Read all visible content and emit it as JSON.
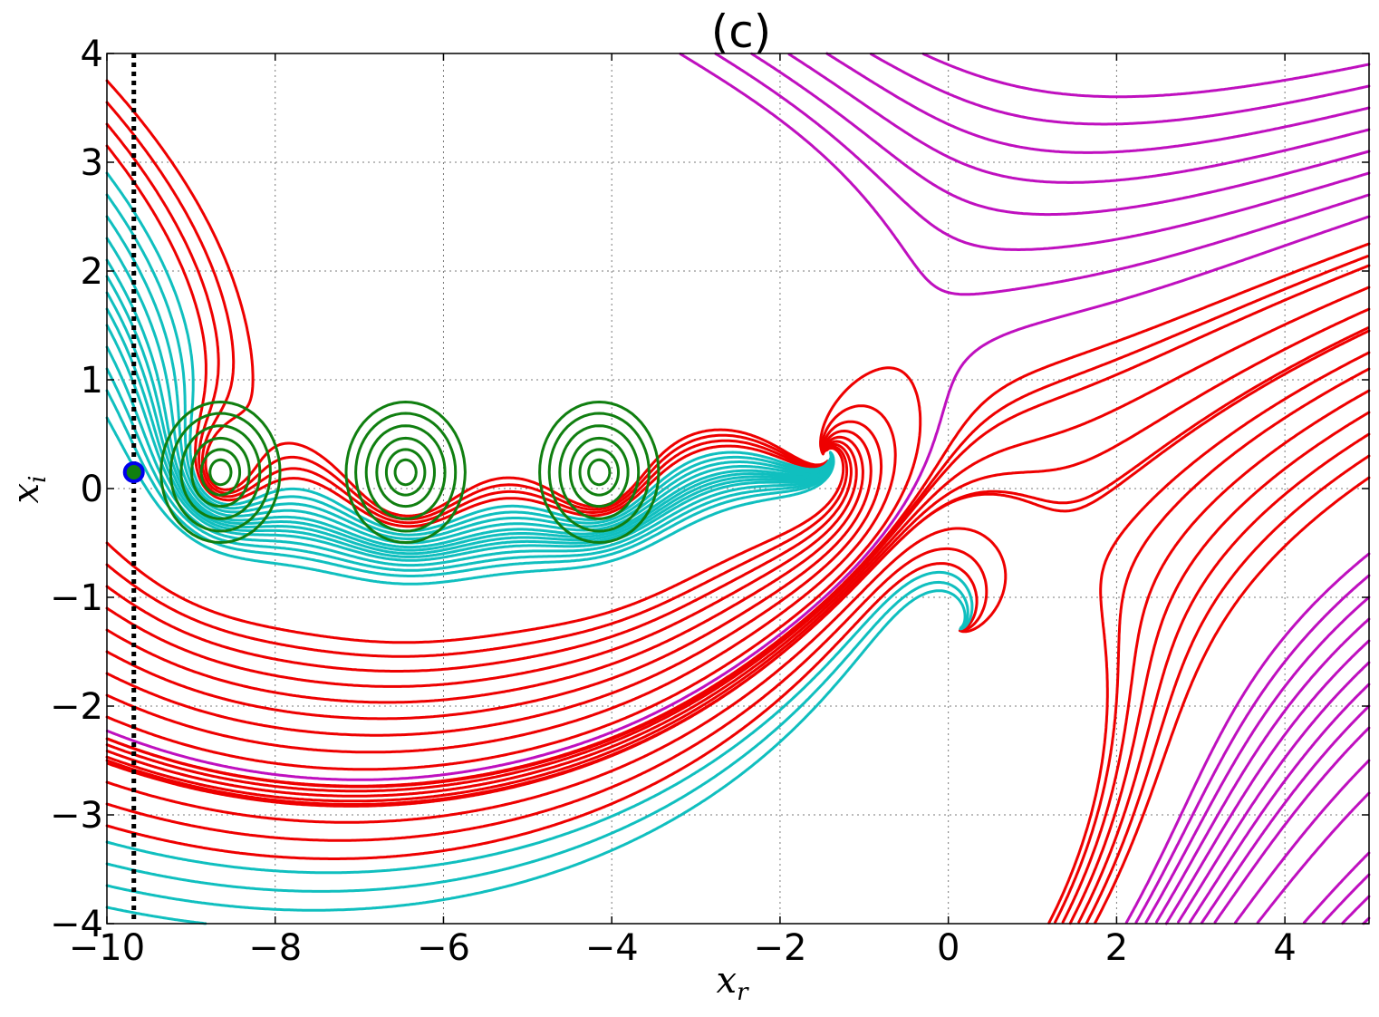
{
  "chart_data": {
    "type": "line",
    "title": "(c)",
    "xlabel": "x",
    "xlabel_sub": "r",
    "ylabel": "x",
    "ylabel_sub": "i",
    "xlim": [
      -10,
      5
    ],
    "ylim": [
      -4,
      4
    ],
    "grid": true,
    "xticks": [
      -10,
      -8,
      -6,
      -4,
      -2,
      0,
      2,
      4
    ],
    "yticks": [
      -4,
      -3,
      -2,
      -1,
      0,
      1,
      2,
      3,
      4
    ],
    "xtick_labels": [
      "−10",
      "−8",
      "−6",
      "−4",
      "−2",
      "0",
      "2",
      "4"
    ],
    "ytick_labels": [
      "−4",
      "−3",
      "−2",
      "−1",
      "0",
      "1",
      "2",
      "3",
      "4"
    ],
    "colors": {
      "red": "#ee0000",
      "cyan": "#10bfbf",
      "magenta": "#bf10bf",
      "green": "#107f10",
      "blue": "#0000ee",
      "black": "#000000"
    },
    "critical_points": [
      {
        "x": -1.45,
        "y": 0.3,
        "kind": "spiral",
        "color": "cyan"
      },
      {
        "x": 0.1,
        "y": -1.28,
        "kind": "spiral",
        "color": "magenta"
      }
    ],
    "centers": [
      {
        "x": -8.65,
        "y": 0.15
      },
      {
        "x": -6.45,
        "y": 0.15
      },
      {
        "x": -4.15,
        "y": 0.15
      }
    ],
    "vertical_line_x": -9.68,
    "markers": [
      {
        "x": -9.68,
        "y": 0.15,
        "fill": "green",
        "edge": "blue"
      }
    ],
    "series": [
      {
        "color": "red",
        "y0": [
          3.75,
          3.55,
          3.35,
          3.15
        ]
      },
      {
        "color": "cyan",
        "y0": [
          2.9,
          2.7,
          2.5,
          2.3,
          2.1,
          1.95,
          1.8,
          1.65,
          1.5,
          1.3,
          1.1,
          0.9,
          0.65
        ]
      },
      {
        "color": "red",
        "y0": [
          -0.5,
          -0.7,
          -0.9,
          -1.1,
          -1.3,
          -1.5,
          -1.7,
          -1.9,
          -2.1,
          -2.3,
          -2.5,
          -2.7,
          -2.9,
          -3.1
        ]
      },
      {
        "color": "cyan",
        "y0": [
          -3.25,
          -3.45,
          -3.65,
          -3.85
        ]
      },
      {
        "color": "magenta",
        "y0": [
          3.9,
          3.7,
          3.5,
          3.3,
          3.1
        ]
      },
      {
        "color": "magenta",
        "y0": [
          2.9,
          2.7,
          2.5
        ]
      },
      {
        "color": "red",
        "y0": [
          2.25,
          2.05,
          1.85,
          1.65,
          1.45,
          1.25,
          1.1,
          0.9,
          0.7,
          0.5,
          0.3,
          0.1
        ]
      },
      {
        "color": "magenta",
        "y0": [
          -0.6,
          -0.8,
          -1.0,
          -1.2,
          -1.4,
          -1.6,
          -1.8,
          -2.0,
          -2.2,
          -2.5,
          -2.8
        ]
      },
      {
        "color": "magenta",
        "y0": [
          -3.35,
          -3.55,
          -3.75,
          -3.95
        ]
      }
    ]
  }
}
